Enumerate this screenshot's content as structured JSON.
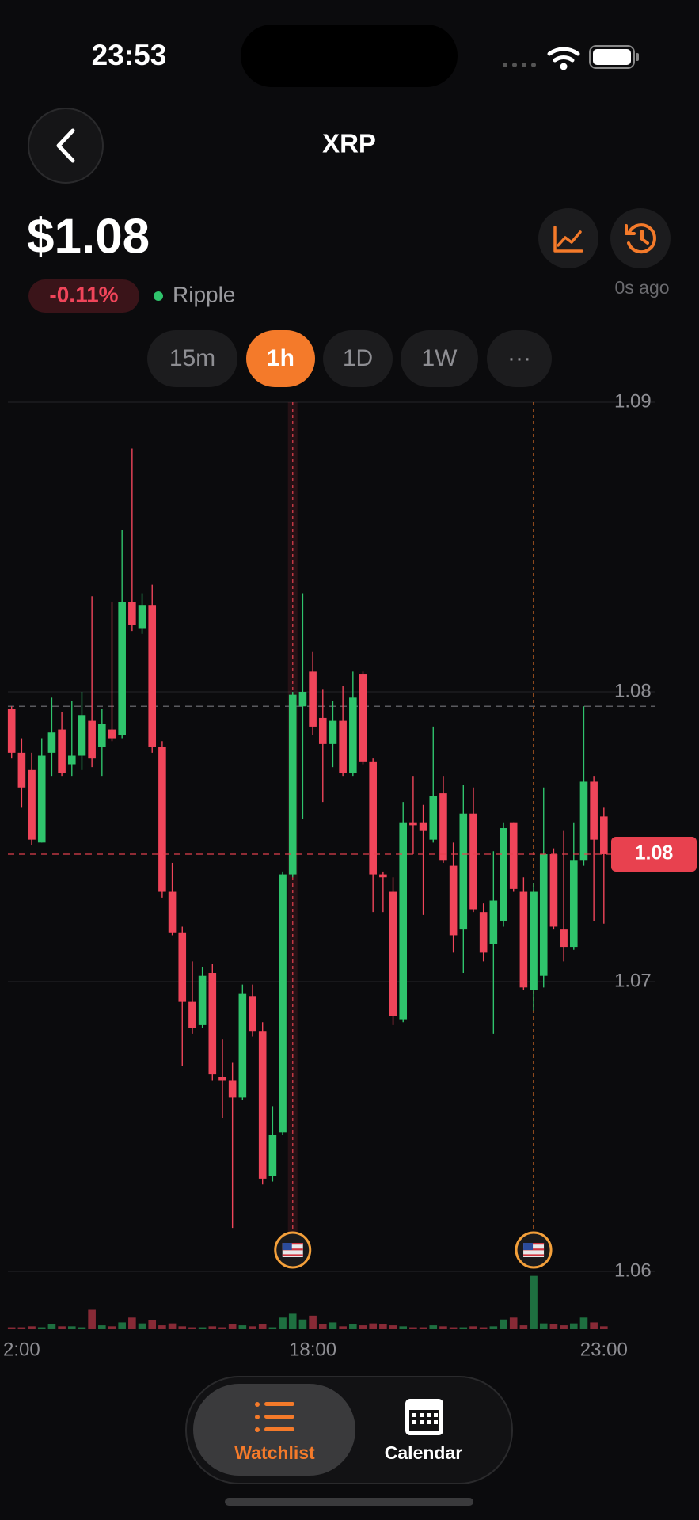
{
  "status_bar": {
    "time": "23:53"
  },
  "header": {
    "title": "XRP"
  },
  "quote": {
    "price": "$1.08",
    "change": "-0.11%",
    "name": "Ripple",
    "updated": "0s ago"
  },
  "timeframes": {
    "items": [
      "15m",
      "1h",
      "1D",
      "1W",
      "···"
    ],
    "active": 1
  },
  "chart_data": {
    "type": "candlestick",
    "categories": [
      "2:00",
      null,
      null,
      null,
      null,
      null,
      null,
      null,
      null,
      null,
      null,
      null,
      null,
      null,
      null,
      null,
      null,
      null,
      null,
      null,
      null,
      null,
      null,
      null,
      null,
      null,
      null,
      null,
      null,
      null,
      "18:00",
      null,
      null,
      null,
      null,
      null,
      null,
      null,
      null,
      null,
      null,
      null,
      null,
      null,
      null,
      null,
      null,
      null,
      null,
      null,
      null,
      null,
      null,
      null,
      null,
      null,
      null,
      null,
      null,
      "23:00"
    ],
    "open": [
      1.0794,
      1.0779,
      1.0773,
      1.0748,
      1.0779,
      1.0787,
      1.0775,
      1.0778,
      1.079,
      1.0781,
      1.0787,
      1.0785,
      1.0831,
      1.0822,
      1.083,
      1.0781,
      1.0731,
      1.0717,
      1.0693,
      1.0685,
      1.0703,
      1.0667,
      1.0666,
      1.066,
      1.0695,
      1.0683,
      1.0633,
      1.0648,
      1.0737,
      1.0795,
      1.0807,
      1.0791,
      1.0782,
      1.079,
      1.0772,
      1.0806,
      1.0776,
      1.0737,
      1.0731,
      1.0687,
      1.0755,
      1.0755,
      1.0749,
      1.0765,
      1.074,
      1.0718,
      1.0758,
      1.0724,
      1.0713,
      1.0721,
      1.0755,
      1.0731,
      1.0697,
      1.0702,
      1.0744,
      1.0718,
      1.0712,
      1.0742,
      1.0769,
      1.0757
    ],
    "high": [
      1.0795,
      1.0784,
      1.0779,
      1.0784,
      1.0798,
      1.0793,
      1.0797,
      1.08,
      1.0833,
      1.0794,
      1.0831,
      1.0856,
      1.0884,
      1.0834,
      1.0837,
      1.0783,
      1.0741,
      1.0719,
      1.0707,
      1.0705,
      1.0706,
      1.068,
      1.0672,
      1.0699,
      1.0699,
      1.0686,
      1.0657,
      1.0738,
      1.08,
      1.0834,
      1.0814,
      1.0801,
      1.0797,
      1.0802,
      1.0807,
      1.0807,
      1.0777,
      1.0738,
      1.0736,
      1.0762,
      1.0771,
      1.0761,
      1.0788,
      1.0771,
      1.0748,
      1.0768,
      1.0767,
      1.0727,
      1.0745,
      1.0755,
      1.0755,
      1.0736,
      1.0734,
      1.0767,
      1.0746,
      1.0752,
      1.0755,
      1.0795,
      1.0771,
      1.076
    ],
    "low": [
      1.0777,
      1.076,
      1.0747,
      1.0748,
      1.0771,
      1.0771,
      1.0771,
      1.0773,
      1.0774,
      1.0771,
      1.0783,
      1.0784,
      1.0821,
      1.082,
      1.0779,
      1.0729,
      1.0716,
      1.0671,
      1.0682,
      1.0684,
      1.0666,
      1.0653,
      1.0615,
      1.0659,
      1.0681,
      1.063,
      1.0631,
      1.0647,
      1.0736,
      1.0756,
      1.0785,
      1.0762,
      1.0774,
      1.0771,
      1.0771,
      1.0775,
      1.0724,
      1.0724,
      1.0685,
      1.0686,
      1.0744,
      1.0723,
      1.0748,
      1.0741,
      1.071,
      1.0703,
      1.0724,
      1.0707,
      1.0682,
      1.0719,
      1.0731,
      1.0697,
      1.069,
      1.0698,
      1.0718,
      1.0707,
      1.0711,
      1.074,
      1.0721,
      1.072
    ],
    "close": [
      1.0779,
      1.0767,
      1.0749,
      1.0778,
      1.0786,
      1.0772,
      1.0778,
      1.0792,
      1.0777,
      1.0789,
      1.0784,
      1.0831,
      1.0823,
      1.083,
      1.0781,
      1.0731,
      1.0717,
      1.0693,
      1.0684,
      1.0702,
      1.0668,
      1.0666,
      1.066,
      1.0696,
      1.0683,
      1.0632,
      1.0647,
      1.0737,
      1.0799,
      1.08,
      1.0788,
      1.0782,
      1.079,
      1.0772,
      1.0798,
      1.0776,
      1.0737,
      1.0736,
      1.0688,
      1.0755,
      1.0754,
      1.0752,
      1.0764,
      1.0742,
      1.0716,
      1.0758,
      1.0725,
      1.071,
      1.0728,
      1.0753,
      1.0732,
      1.0698,
      1.0731,
      1.0744,
      1.0719,
      1.0712,
      1.0742,
      1.0769,
      1.0749,
      1.0744
    ],
    "volume": [
      2,
      2,
      3,
      2,
      5,
      3,
      3,
      2,
      20,
      4,
      3,
      7,
      12,
      6,
      9,
      4,
      6,
      3,
      2,
      2,
      3,
      2,
      5,
      4,
      3,
      5,
      2,
      12,
      16,
      10,
      14,
      5,
      7,
      3,
      5,
      4,
      6,
      5,
      4,
      3,
      2,
      2,
      4,
      3,
      2,
      2,
      3,
      2,
      3,
      10,
      12,
      4,
      55,
      6,
      5,
      4,
      6,
      12,
      7,
      3
    ],
    "up_color": "#2fc46c",
    "down_color": "#f0455a",
    "ylim": [
      1.06,
      1.09
    ],
    "yticks": [
      1.06,
      1.07,
      1.08,
      1.09
    ],
    "grid": true,
    "ref_line": 1.0795,
    "last_price_label": "1.08",
    "events": [
      28,
      52
    ]
  },
  "nav": {
    "items": [
      {
        "label": "Watchlist"
      },
      {
        "label": "Calendar"
      }
    ],
    "active": 0
  }
}
